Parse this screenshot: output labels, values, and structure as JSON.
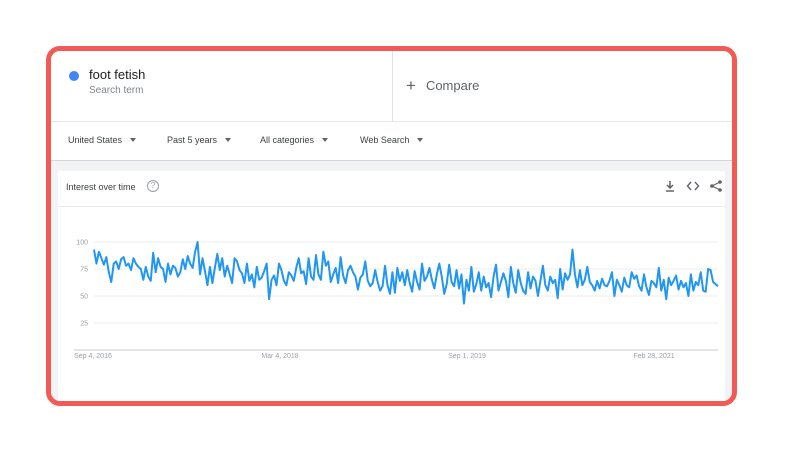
{
  "search_term": {
    "name": "foot fetish",
    "subtitle": "Search term",
    "color": "#4285f4"
  },
  "compare": {
    "label": "Compare"
  },
  "filters": {
    "region": "United States",
    "time": "Past 5 years",
    "category": "All categories",
    "search_type": "Web Search"
  },
  "panel": {
    "title": "Interest over time",
    "help_icon": "help-icon",
    "icons": [
      "download-icon",
      "embed-icon",
      "share-icon"
    ]
  },
  "colors": {
    "frame": "#f25a55",
    "series": "#2196f3"
  },
  "chart_data": {
    "type": "line",
    "x_tick_labels": [
      "Sep 4, 2016",
      "Mar 4, 2018",
      "Sep 1, 2019",
      "Feb 28, 2021"
    ],
    "y_tick_labels": [
      "100",
      "75",
      "50",
      "25"
    ],
    "ylim": [
      0,
      100
    ],
    "grid": true,
    "series": [
      {
        "values": [
          93,
          80,
          91,
          85,
          79,
          86,
          72,
          63,
          80,
          82,
          75,
          84,
          86,
          78,
          80,
          74,
          85,
          80,
          77,
          75,
          65,
          77,
          68,
          64,
          90,
          72,
          85,
          77,
          75,
          63,
          80,
          70,
          78,
          76,
          68,
          72,
          84,
          75,
          87,
          80,
          76,
          91,
          100,
          70,
          85,
          73,
          60,
          77,
          62,
          76,
          89,
          74,
          85,
          68,
          78,
          70,
          62,
          85,
          82,
          74,
          71,
          62,
          80,
          64,
          70,
          58,
          77,
          65,
          67,
          73,
          80,
          47,
          65,
          69,
          60,
          80,
          74,
          64,
          60,
          72,
          69,
          64,
          76,
          85,
          71,
          73,
          61,
          85,
          68,
          65,
          88,
          70,
          65,
          91,
          78,
          82,
          63,
          70,
          76,
          62,
          86,
          69,
          62,
          74,
          78,
          72,
          68,
          56,
          67,
          70,
          82,
          64,
          59,
          62,
          74,
          63,
          55,
          59,
          78,
          60,
          52,
          72,
          53,
          76,
          64,
          72,
          60,
          74,
          62,
          54,
          73,
          63,
          56,
          80,
          64,
          68,
          76,
          65,
          57,
          70,
          80,
          68,
          52,
          61,
          79,
          63,
          59,
          74,
          57,
          70,
          43,
          65,
          55,
          77,
          54,
          61,
          72,
          55,
          68,
          58,
          62,
          49,
          68,
          79,
          55,
          63,
          71,
          64,
          49,
          77,
          62,
          53,
          74,
          62,
          55,
          52,
          72,
          57,
          68,
          64,
          50,
          64,
          78,
          60,
          55,
          68,
          62,
          65,
          48,
          75,
          56,
          71,
          65,
          70,
          93,
          70,
          58,
          74,
          60,
          65,
          77,
          63,
          60,
          55,
          64,
          57,
          66,
          60,
          59,
          64,
          72,
          50,
          65,
          60,
          54,
          67,
          60,
          58,
          72,
          66,
          69,
          59,
          55,
          70,
          58,
          51,
          64,
          62,
          58,
          76,
          55,
          65,
          47,
          67,
          60,
          64,
          69,
          56,
          64,
          58,
          62,
          50,
          70,
          55,
          63,
          60,
          72,
          55,
          54,
          75,
          74,
          63,
          61,
          59
        ]
      }
    ]
  }
}
